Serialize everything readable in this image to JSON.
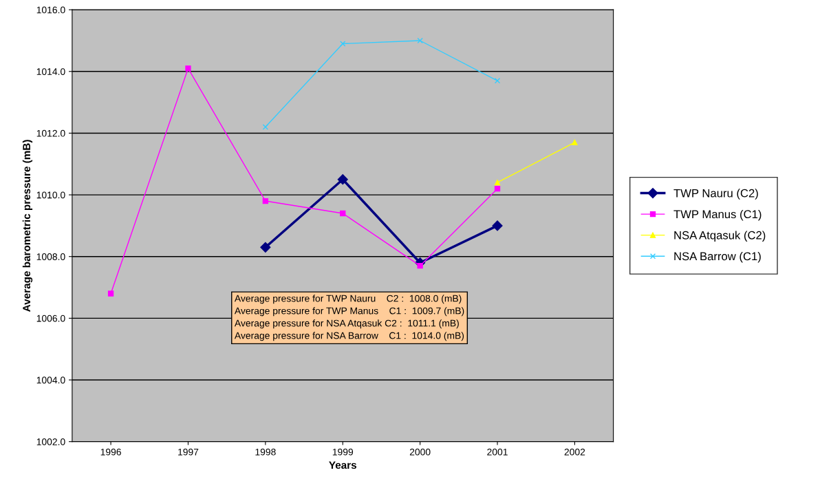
{
  "chart_data": {
    "type": "line",
    "xlabel": "Years",
    "ylabel": "Average barometric pressure (mB)",
    "categories": [
      "1996",
      "1997",
      "1998",
      "1999",
      "2000",
      "2001",
      "2002"
    ],
    "series": [
      {
        "name": "TWP Nauru (C2)",
        "color": "#000080",
        "marker": "diamond",
        "values": [
          null,
          null,
          1008.3,
          1010.5,
          1007.8,
          1009.0,
          null
        ]
      },
      {
        "name": "TWP Manus (C1)",
        "color": "#ff00ff",
        "marker": "square",
        "values": [
          1006.8,
          1014.1,
          1009.8,
          1009.4,
          1007.7,
          1010.2,
          null
        ]
      },
      {
        "name": "NSA Atqasuk (C2)",
        "color": "#ffff00",
        "marker": "triangle",
        "values": [
          null,
          null,
          null,
          null,
          null,
          1010.4,
          1011.7
        ]
      },
      {
        "name": "NSA Barrow (C1)",
        "color": "#33ccff",
        "marker": "cross",
        "values": [
          null,
          null,
          1012.2,
          1014.9,
          1015.0,
          1013.7,
          null
        ]
      }
    ],
    "ylim": [
      1002,
      1016
    ],
    "yticks": [
      {
        "value": 1002,
        "label": "1002.0"
      },
      {
        "value": 1004,
        "label": "1004.0"
      },
      {
        "value": 1006,
        "label": "1006.0"
      },
      {
        "value": 1008,
        "label": "1008.0"
      },
      {
        "value": 1010,
        "label": "1010.0"
      },
      {
        "value": 1012,
        "label": "1012.0"
      },
      {
        "value": 1014,
        "label": "1014.0"
      },
      {
        "value": 1016,
        "label": "1016.0"
      }
    ],
    "grid": "y",
    "legend": "right",
    "line_style": "solid",
    "annotations": [
      "Average pressure for TWP Nauru    C2 :  1008.0 (mB)\nAverage pressure for TWP Manus    C1 :  1009.7 (mB)\nAverage pressure for NSA Atqasuk C2 :  1011.1 (mB)\nAverage pressure for NSA Barrow    C1 :  1014.0 (mB)"
    ]
  }
}
